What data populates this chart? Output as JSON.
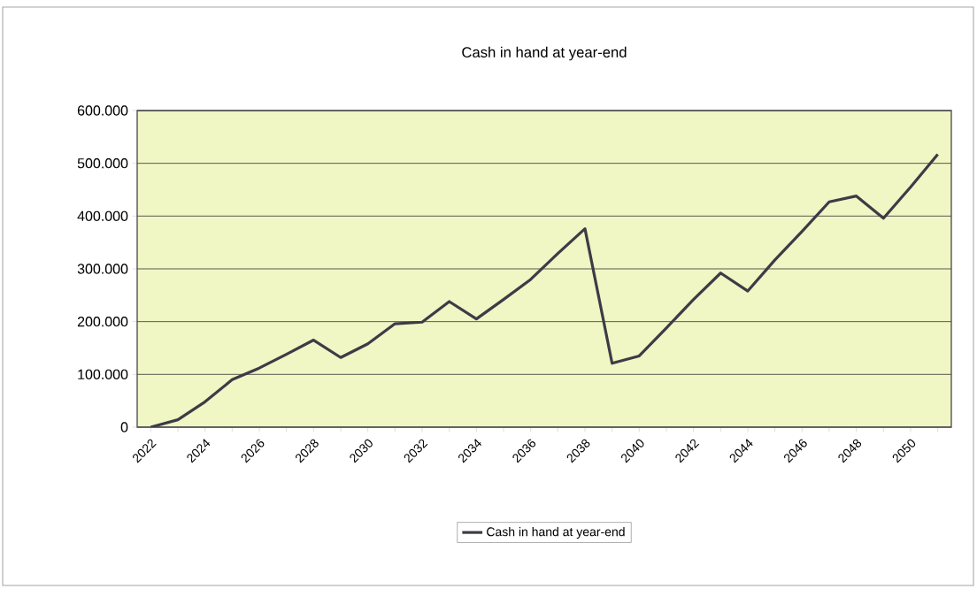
{
  "chart_data": {
    "type": "line",
    "title": "Cash in hand at year-end",
    "categories": [
      "2022",
      null,
      "2024",
      null,
      "2026",
      null,
      "2028",
      null,
      "2030",
      null,
      "2032",
      null,
      "2034",
      null,
      "2036",
      null,
      "2038",
      null,
      "2040",
      null,
      "2042",
      null,
      "2044",
      null,
      "2046",
      null,
      "2048",
      null,
      "2050",
      null
    ],
    "series": [
      {
        "name": "Cash in hand at year-end",
        "color": "#3c3c46",
        "values": [
          0,
          14000,
          48000,
          90000,
          112000,
          138000,
          165000,
          132000,
          158000,
          196000,
          199000,
          238000,
          205000,
          242000,
          280000,
          329000,
          376000,
          121000,
          135000,
          188000,
          242000,
          292000,
          258000,
          317000,
          371000,
          427000,
          438000,
          396000,
          455000,
          517000
        ]
      }
    ],
    "ylim": [
      0,
      600000
    ],
    "yticks": [
      0,
      {
        "value": 100000,
        "label": "100.000"
      },
      {
        "value": 200000,
        "label": "200.000"
      },
      {
        "value": 300000,
        "label": "300.000"
      },
      {
        "value": 400000,
        "label": "400.000"
      },
      {
        "value": 500000,
        "label": "500.000"
      },
      {
        "value": 600000,
        "label": "600.000"
      }
    ],
    "grid": "y",
    "legend": "bottom"
  }
}
